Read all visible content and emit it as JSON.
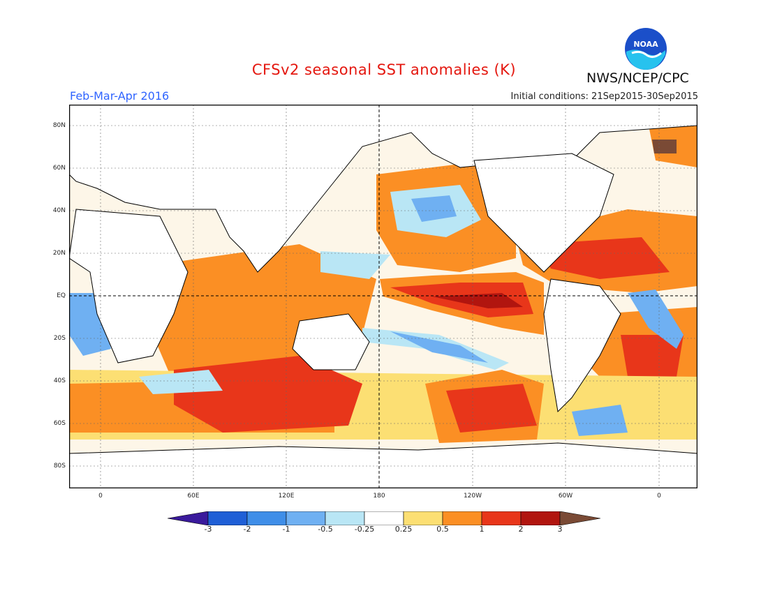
{
  "title": "CFSv2 seasonal SST anomalies (K)",
  "season": "Feb-Mar-Apr 2016",
  "initial_conditions": "Initial conditions: 21Sep2015-30Sep2015",
  "agency": "NWS/NCEP/CPC",
  "logo": {
    "text": "NOAA",
    "icon": "noaa-logo"
  },
  "lat_labels": [
    "80N",
    "60N",
    "40N",
    "20N",
    "EQ",
    "20S",
    "40S",
    "60S",
    "80S"
  ],
  "lon_labels": [
    "0",
    "60E",
    "120E",
    "180",
    "120W",
    "60W",
    "0"
  ],
  "colorbar": {
    "labels": [
      "-3",
      "-2",
      "-1",
      "-0.5",
      "-0.25",
      "0.25",
      "0.5",
      "1",
      "2",
      "3"
    ],
    "colors": [
      "#3a1a9c",
      "#1f5fd6",
      "#3f8ee8",
      "#6fb0f2",
      "#b9e6f5",
      "#ffffff",
      "#fcdf73",
      "#fb8f24",
      "#e8361a",
      "#b1150f",
      "#7a4a35"
    ]
  },
  "colors": {
    "title": "#e4170f",
    "season": "#2f64ff",
    "land": "#ffffff",
    "frame": "#000000"
  }
}
